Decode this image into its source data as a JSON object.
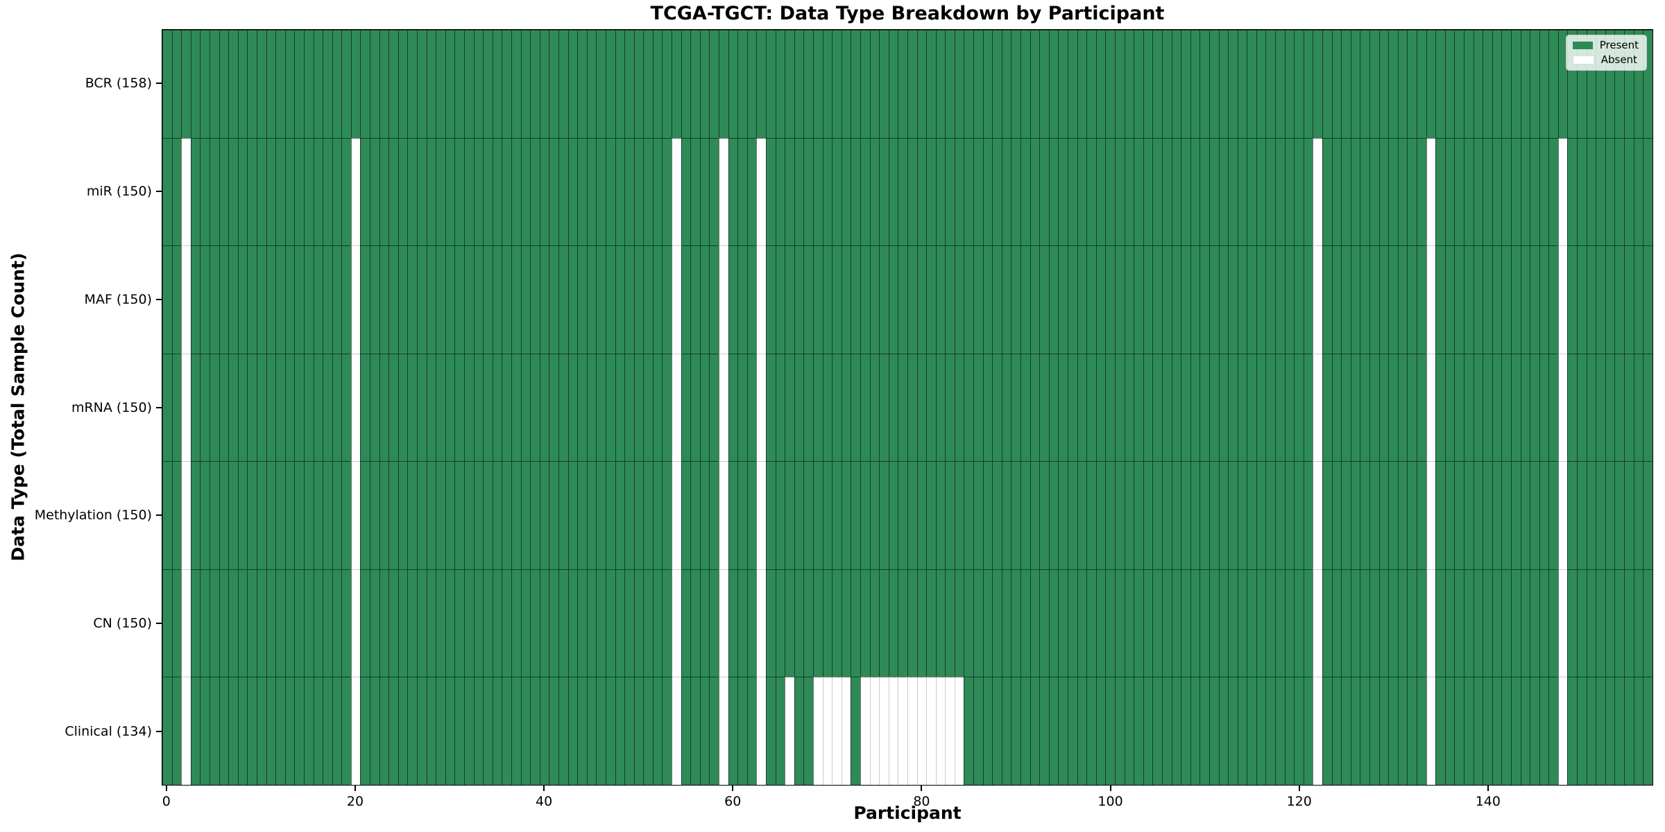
{
  "chart_data": {
    "type": "heatmap",
    "title": "TCGA-TGCT: Data Type Breakdown by Participant",
    "xlabel": "Participant",
    "ylabel": "Data Type (Total Sample Count)",
    "n_participants": 158,
    "x_ticks": [
      0,
      20,
      40,
      60,
      80,
      100,
      120,
      140
    ],
    "xlim": [
      -0.5,
      157.5
    ],
    "grid": false,
    "legend_position": "upper right",
    "rows": [
      {
        "label": "BCR (158)",
        "data_type": "BCR",
        "present_count": 158,
        "absent_participants": []
      },
      {
        "label": "miR (150)",
        "data_type": "miR",
        "present_count": 150,
        "absent_participants": [
          2,
          20,
          54,
          59,
          63,
          122,
          134,
          148
        ]
      },
      {
        "label": "MAF (150)",
        "data_type": "MAF",
        "present_count": 150,
        "absent_participants": [
          2,
          20,
          54,
          59,
          63,
          122,
          134,
          148
        ]
      },
      {
        "label": "mRNA (150)",
        "data_type": "mRNA",
        "present_count": 150,
        "absent_participants": [
          2,
          20,
          54,
          59,
          63,
          122,
          134,
          148
        ]
      },
      {
        "label": "Methylation (150)",
        "data_type": "Methylation",
        "present_count": 150,
        "absent_participants": [
          2,
          20,
          54,
          59,
          63,
          122,
          134,
          148
        ]
      },
      {
        "label": "CN (150)",
        "data_type": "CN",
        "present_count": 150,
        "absent_participants": [
          2,
          20,
          54,
          59,
          63,
          122,
          134,
          148
        ]
      },
      {
        "label": "Clinical (134)",
        "data_type": "Clinical",
        "present_count": 134,
        "absent_participants": [
          2,
          20,
          54,
          59,
          63,
          66,
          69,
          70,
          71,
          72,
          74,
          75,
          76,
          77,
          78,
          79,
          80,
          81,
          82,
          83,
          84,
          122,
          134,
          148
        ]
      }
    ],
    "legend": [
      {
        "label": "Present",
        "color": "#2e8b57"
      },
      {
        "label": "Absent",
        "color": "#ffffff"
      }
    ],
    "colors": {
      "present": "#2e8b57",
      "absent": "#ffffff",
      "present_edge": "rgba(0,0,0,0.55)",
      "absent_edge": "#c9c9c9"
    }
  }
}
